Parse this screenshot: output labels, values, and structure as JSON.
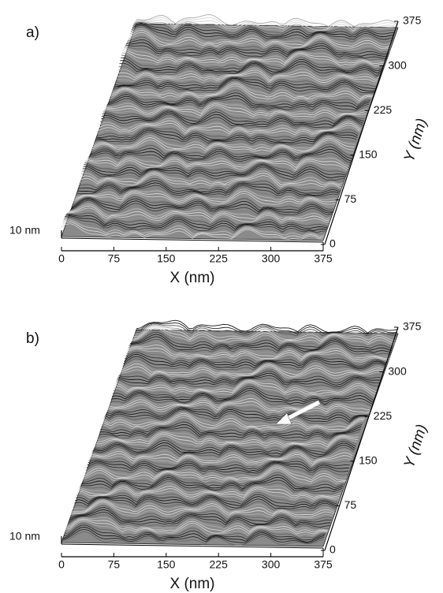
{
  "chart_data": [
    {
      "type": "surface",
      "label": "a)",
      "xlabel": "X (nm)",
      "ylabel": "Y (nm)",
      "zlabel": "10 nm",
      "xlim": [
        0,
        375
      ],
      "xticks": [
        0,
        75,
        150,
        225,
        300,
        375
      ],
      "ylim": [
        0,
        375
      ],
      "yticks": [
        0,
        75,
        150,
        225,
        300,
        375
      ]
    },
    {
      "type": "surface",
      "label": "b)",
      "xlabel": "X (nm)",
      "ylabel": "Y (nm)",
      "zlabel": "10 nm",
      "xlim": [
        0,
        375
      ],
      "xticks": [
        0,
        75,
        150,
        225,
        300,
        375
      ],
      "ylim": [
        0,
        375
      ],
      "yticks": [
        0,
        75,
        150,
        225,
        300,
        375
      ]
    }
  ]
}
